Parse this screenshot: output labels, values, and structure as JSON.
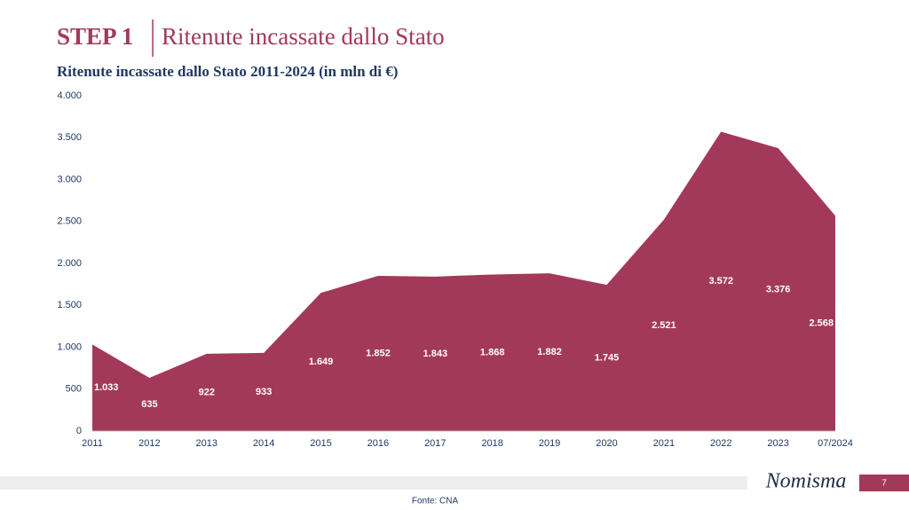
{
  "slide": {
    "step": "STEP 1",
    "title": "Ritenute incassate dallo Stato",
    "source": "Fonte: CNA",
    "logo": "Nomisma",
    "page": 7
  },
  "chart_data": {
    "type": "area",
    "title": "Ritenute incassate dallo Stato 2011-2024 (in mln di €)",
    "categories": [
      "2011",
      "2012",
      "2013",
      "2014",
      "2015",
      "2016",
      "2017",
      "2018",
      "2019",
      "2020",
      "2021",
      "2022",
      "2023",
      "07/2024"
    ],
    "values": [
      1033,
      635,
      922,
      933,
      1649,
      1852,
      1843,
      1868,
      1882,
      1745,
      2521,
      3572,
      3376,
      2568
    ],
    "value_labels": [
      "1.033",
      "635",
      "922",
      "933",
      "1.649",
      "1.852",
      "1.843",
      "1.868",
      "1.882",
      "1.745",
      "2.521",
      "3.572",
      "3.376",
      "2.568"
    ],
    "color": "#a3395a",
    "ylim": [
      0,
      4000
    ],
    "yticks": [
      0,
      500,
      {
        "value": 1000,
        "label": "1.000"
      },
      {
        "value": 1500,
        "label": "1.500"
      },
      {
        "value": 2000,
        "label": "2.000"
      },
      {
        "value": 2500,
        "label": "2.500"
      },
      {
        "value": 3000,
        "label": "3.000"
      },
      {
        "value": 3500,
        "label": "3.500"
      },
      {
        "value": 4000,
        "label": "4.000"
      }
    ],
    "grid": false
  }
}
